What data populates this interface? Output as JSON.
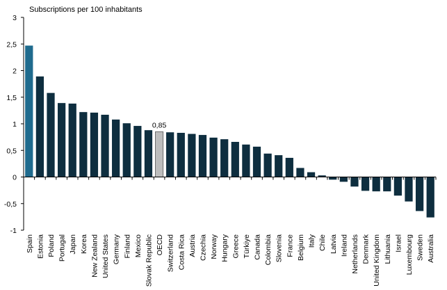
{
  "chart_data": {
    "type": "bar",
    "title": "",
    "ylabel": "Subscriptions  per 100 inhabitants",
    "xlabel": "",
    "ylim": [
      -1,
      3
    ],
    "yticks": [
      "-1",
      "-0,5",
      "0",
      "0,5",
      "1",
      "1,5",
      "2",
      "2,5",
      "3"
    ],
    "ytick_values": [
      -1,
      -0.5,
      0,
      0.5,
      1,
      1.5,
      2,
      2.5,
      3
    ],
    "highlight_label": "0,85",
    "highlight_category": "OECD",
    "grid": false,
    "colors": {
      "default": "#0e2e3f",
      "first": "#1f6b8e",
      "oecd": "#bdbdbd",
      "oecd_stroke": "#555555"
    },
    "categories": [
      "Spain",
      "Estonia",
      "Poland",
      "Portugal",
      "Japan",
      "Korea",
      "New Zealand",
      "United States",
      "Germany",
      "Finland",
      "Mexico",
      "Slovak Republic",
      "OECD",
      "Switzerland",
      "Costa Rica",
      "Austria",
      "Czechia",
      "Norway",
      "Hungary",
      "Greece",
      "Türkiye",
      "Canada",
      "Colombia",
      "Slovenia",
      "France",
      "Belgium",
      "Italy",
      "Chile",
      "Latvia",
      "Ireland",
      "Netherlands",
      "Denmark",
      "United Kingdom",
      "Lithuania",
      "Israel",
      "Luxembourg",
      "Sweden",
      "Australia"
    ],
    "values": [
      2.47,
      1.89,
      1.58,
      1.39,
      1.38,
      1.22,
      1.21,
      1.17,
      1.08,
      1.01,
      0.96,
      0.88,
      0.85,
      0.84,
      0.83,
      0.81,
      0.79,
      0.74,
      0.71,
      0.66,
      0.61,
      0.57,
      0.44,
      0.41,
      0.36,
      0.17,
      0.09,
      0.03,
      -0.05,
      -0.09,
      -0.18,
      -0.26,
      -0.27,
      -0.27,
      -0.35,
      -0.46,
      -0.64,
      -0.76
    ]
  }
}
